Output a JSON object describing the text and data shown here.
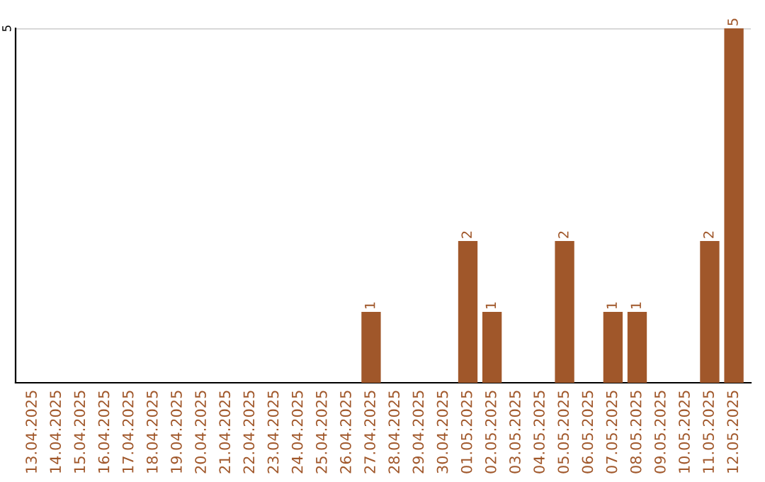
{
  "chart_data": {
    "type": "bar",
    "categories": [
      "13.04.2025",
      "14.04.2025",
      "15.04.2025",
      "16.04.2025",
      "17.04.2025",
      "18.04.2025",
      "19.04.2025",
      "20.04.2025",
      "21.04.2025",
      "22.04.2025",
      "23.04.2025",
      "24.04.2025",
      "25.04.2025",
      "26.04.2025",
      "27.04.2025",
      "28.04.2025",
      "29.04.2025",
      "30.04.2025",
      "01.05.2025",
      "02.05.2025",
      "03.05.2025",
      "04.05.2025",
      "05.05.2025",
      "06.05.2025",
      "07.05.2025",
      "08.05.2025",
      "09.05.2025",
      "10.05.2025",
      "11.05.2025",
      "12.05.2025"
    ],
    "values": [
      null,
      null,
      null,
      null,
      null,
      null,
      null,
      null,
      null,
      null,
      null,
      null,
      null,
      null,
      1,
      null,
      null,
      null,
      2,
      1,
      null,
      null,
      2,
      null,
      1,
      1,
      null,
      null,
      2,
      5
    ],
    "data_labels": true,
    "ylim": [
      0,
      5
    ],
    "ref_lines": [
      {
        "axis": "y",
        "value": 5,
        "label": "5",
        "color": "#cccccc"
      }
    ],
    "color": "#a0572a"
  }
}
